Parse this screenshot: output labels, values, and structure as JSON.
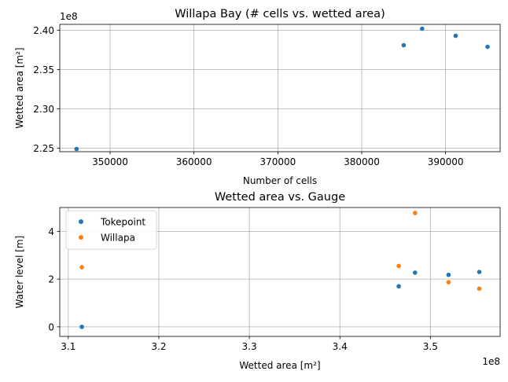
{
  "chart_data": [
    {
      "type": "scatter",
      "title": "Willapa Bay (# cells vs. wetted area)",
      "xlabel": "Number of cells",
      "ylabel": "Wetted area [m²]",
      "y_offset_text": "1e8",
      "xlim": [
        344000,
        396500
      ],
      "ylim": [
        224550000.0,
        240750000.0
      ],
      "x_ticks": [
        350000,
        360000,
        370000,
        380000,
        390000
      ],
      "x_tick_labels": [
        "350000",
        "360000",
        "370000",
        "380000",
        "390000"
      ],
      "y_ticks": [
        225000000.0,
        230000000.0,
        235000000.0,
        240000000.0
      ],
      "y_tick_labels": [
        "2.25",
        "2.30",
        "2.35",
        "2.40"
      ],
      "grid": true,
      "series": [
        {
          "color": "#1f77b4",
          "x": [
            346000,
            385000,
            387200,
            391200,
            395000
          ],
          "y": [
            224900000.0,
            238100000.0,
            240200000.0,
            239300000.0,
            237900000.0
          ]
        }
      ]
    },
    {
      "type": "scatter",
      "title": "Wetted area vs. Gauge",
      "xlabel": "Wetted area [m²]",
      "ylabel": "Water level [m]",
      "x_offset_text": "1e8",
      "xlim": [
        309060000.0,
        357700000.0
      ],
      "ylim": [
        -0.4,
        5.0
      ],
      "x_ticks": [
        310000000.0,
        320000000.0,
        330000000.0,
        340000000.0,
        350000000.0
      ],
      "x_tick_labels": [
        "3.1",
        "3.2",
        "3.3",
        "3.4",
        "3.5"
      ],
      "y_ticks": [
        0,
        2,
        4
      ],
      "y_tick_labels": [
        "0",
        "2",
        "4"
      ],
      "grid": true,
      "legend_position": "upper-left",
      "series": [
        {
          "name": "Tokepoint",
          "color": "#1f77b4",
          "x": [
            311500000.0,
            346500000.0,
            348300000.0,
            352000000.0,
            355400000.0
          ],
          "y": [
            0.0,
            1.7,
            2.27,
            2.18,
            2.3
          ]
        },
        {
          "name": "Willapa",
          "color": "#ff7f0e",
          "x": [
            311500000.0,
            346500000.0,
            348300000.0,
            352000000.0,
            355400000.0
          ],
          "y": [
            2.5,
            2.55,
            4.77,
            1.87,
            1.6
          ]
        }
      ]
    }
  ]
}
